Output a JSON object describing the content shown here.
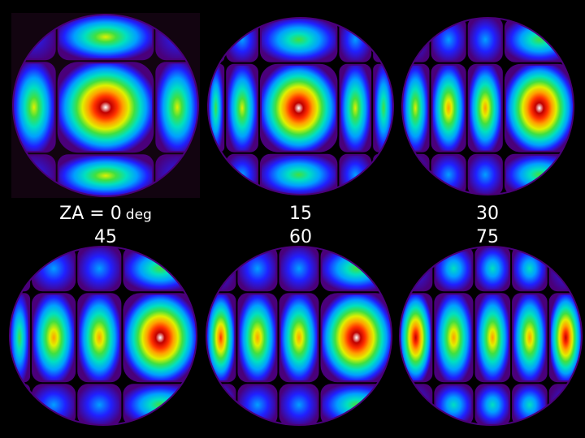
{
  "captions": {
    "first_prefix": "ZA = ",
    "first_unit": "deg",
    "labels": [
      "0",
      "15",
      "30",
      "45",
      "60",
      "75"
    ]
  },
  "colors": {
    "background": "#000000",
    "frame_tint": "#120410",
    "colormap": [
      "#4a007a",
      "#2020ff",
      "#00a0ff",
      "#00e0c0",
      "#40e040",
      "#e0f000",
      "#ffa000",
      "#ff3000",
      "#c00000",
      "#ffffff"
    ]
  },
  "panels": [
    {
      "name": "za-0",
      "cols": 3,
      "rows": 3,
      "hot_col": 1,
      "hot_row": 1
    },
    {
      "name": "za-15",
      "cols": 5,
      "rows": 3,
      "hot_col": 2,
      "hot_row": 1
    },
    {
      "name": "za-30",
      "cols": 4,
      "rows": 3,
      "hot_col": 3,
      "hot_row": 1
    },
    {
      "name": "za-45",
      "cols": 4,
      "rows": 3,
      "hot_col": 3,
      "hot_row": 1
    },
    {
      "name": "za-60",
      "cols": 4,
      "rows": 3,
      "hot_col": 3,
      "hot_row": 1
    },
    {
      "name": "za-75",
      "cols": 5,
      "rows": 3,
      "hot_col": 4,
      "hot_row": 1
    }
  ]
}
